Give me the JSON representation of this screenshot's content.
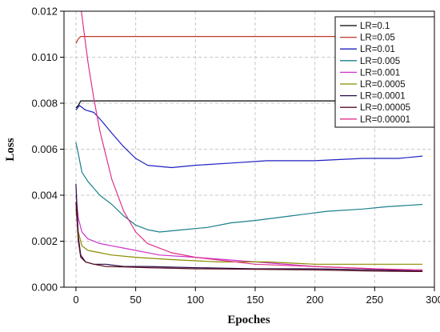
{
  "chart_data": {
    "type": "line",
    "title": "",
    "xlabel": "Epoches",
    "ylabel": "Loss",
    "xlim": [
      -10,
      300
    ],
    "ylim": [
      0,
      0.012
    ],
    "xticks": [
      0,
      50,
      100,
      150,
      200,
      250,
      300
    ],
    "xtick_labels": [
      "0",
      "50",
      "100",
      "150",
      "200",
      "250",
      "300"
    ],
    "yticks": [
      0,
      0.002,
      0.004,
      0.006,
      0.008,
      0.01,
      0.012
    ],
    "ytick_labels": [
      "0.000",
      "0.002",
      "0.004",
      "0.006",
      "0.008",
      "0.010",
      "0.012"
    ],
    "grid": true,
    "legend_position": "top-right",
    "series": [
      {
        "name": "LR=0.1",
        "color": "#000000",
        "x": [
          0,
          2,
          4,
          6,
          290
        ],
        "y": [
          0.0078,
          0.0079,
          0.0081,
          0.0081,
          0.0081
        ]
      },
      {
        "name": "LR=0.05",
        "color": "#c0392b",
        "x": [
          0,
          2,
          4,
          6,
          290
        ],
        "y": [
          0.0106,
          0.0108,
          0.0109,
          0.0109,
          0.0109
        ]
      },
      {
        "name": "LR=0.01",
        "color": "#1f1fbf",
        "x": [
          0,
          3,
          8,
          15,
          22,
          30,
          40,
          50,
          60,
          80,
          100,
          130,
          160,
          200,
          240,
          270,
          290
        ],
        "y": [
          0.0077,
          0.0079,
          0.0077,
          0.0076,
          0.0072,
          0.0067,
          0.0061,
          0.0056,
          0.0053,
          0.0052,
          0.0053,
          0.0054,
          0.0055,
          0.0055,
          0.0056,
          0.0056,
          0.0057
        ]
      },
      {
        "name": "LR=0.005",
        "color": "#1b7f8c",
        "x": [
          0,
          2,
          5,
          10,
          15,
          20,
          30,
          40,
          50,
          60,
          70,
          90,
          110,
          130,
          150,
          180,
          210,
          240,
          260,
          290
        ],
        "y": [
          0.0063,
          0.0058,
          0.005,
          0.0046,
          0.0043,
          0.004,
          0.0036,
          0.0031,
          0.0027,
          0.0025,
          0.0024,
          0.0025,
          0.0026,
          0.0028,
          0.0029,
          0.0031,
          0.0033,
          0.0034,
          0.0035,
          0.0036
        ]
      },
      {
        "name": "LR=0.001",
        "color": "#cc33cc",
        "x": [
          0,
          2,
          5,
          10,
          20,
          30,
          40,
          50,
          70,
          100,
          150,
          200,
          250,
          290
        ],
        "y": [
          0.004,
          0.003,
          0.0024,
          0.0021,
          0.0019,
          0.0018,
          0.0017,
          0.0016,
          0.0014,
          0.0013,
          0.0011,
          0.0009,
          0.0008,
          0.0007
        ]
      },
      {
        "name": "LR=0.0005",
        "color": "#8b8b00",
        "x": [
          0,
          2,
          5,
          10,
          20,
          30,
          50,
          80,
          120,
          160,
          200,
          250,
          290
        ],
        "y": [
          0.0034,
          0.0024,
          0.0018,
          0.0016,
          0.0015,
          0.0014,
          0.0013,
          0.0012,
          0.0011,
          0.0011,
          0.001,
          0.001,
          0.001
        ]
      },
      {
        "name": "LR=0.0001",
        "color": "#2a0a4a",
        "x": [
          0,
          2,
          4,
          8,
          15,
          25,
          40,
          60,
          100,
          150,
          200,
          250,
          290
        ],
        "y": [
          0.0045,
          0.0022,
          0.0014,
          0.0011,
          0.001,
          0.001,
          0.0009,
          0.0009,
          0.00085,
          0.0008,
          0.0008,
          0.00075,
          0.0007
        ]
      },
      {
        "name": "LR=0.00005",
        "color": "#5a1020",
        "x": [
          0,
          2,
          4,
          8,
          15,
          25,
          40,
          60,
          100,
          150,
          200,
          250,
          290
        ],
        "y": [
          0.0037,
          0.002,
          0.0013,
          0.0011,
          0.001,
          0.0009,
          0.00088,
          0.00085,
          0.0008,
          0.00078,
          0.00075,
          0.0007,
          0.00068
        ]
      },
      {
        "name": "LR=0.00001",
        "color": "#e0308a",
        "x": [
          0,
          2,
          4,
          7,
          10,
          15,
          20,
          30,
          40,
          50,
          60,
          80,
          100,
          150,
          200,
          250,
          290
        ],
        "y": [
          0.0125,
          0.0125,
          0.0122,
          0.011,
          0.0098,
          0.0082,
          0.0068,
          0.0047,
          0.0033,
          0.0024,
          0.0019,
          0.0015,
          0.0013,
          0.001,
          0.0009,
          0.0008,
          0.00075
        ]
      }
    ]
  }
}
